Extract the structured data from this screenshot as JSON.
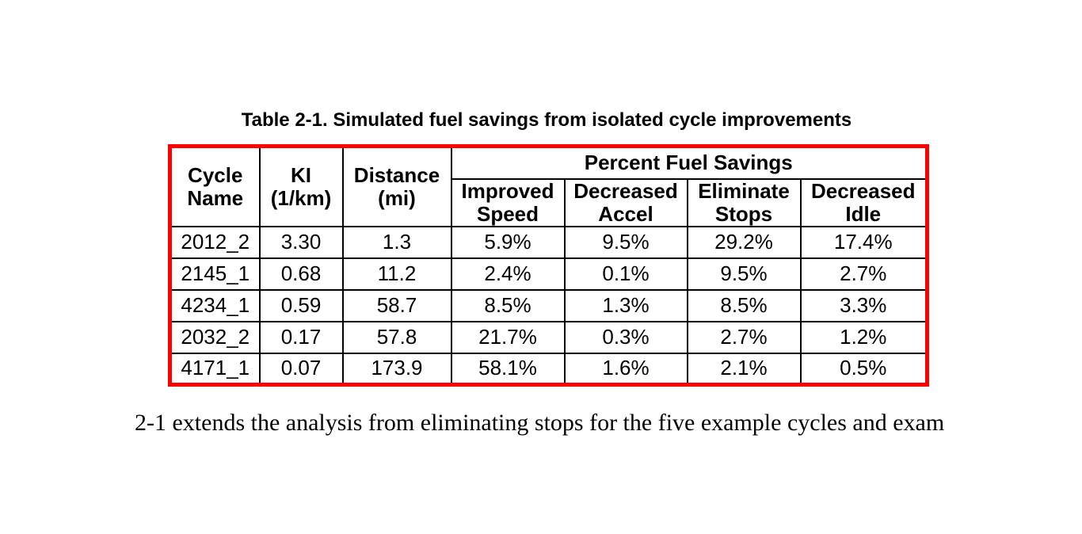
{
  "colors": {
    "table_border": "#fe0000",
    "grid_lines": "#000000",
    "text": "#000000",
    "background": "#ffffff"
  },
  "caption": "Table 2-1. Simulated fuel savings from isolated cycle improvements",
  "table": {
    "columns": {
      "cycle_name": "Cycle Name",
      "ki": "KI (1/km)",
      "distance": "Distance (mi)"
    },
    "group_header": "Percent Fuel Savings",
    "sub_headers": [
      "Improved Speed",
      "Decreased Accel",
      "Eliminate Stops",
      "Decreased Idle"
    ],
    "rows": [
      [
        "2012_2",
        "3.30",
        "1.3",
        "5.9%",
        "9.5%",
        "29.2%",
        "17.4%"
      ],
      [
        "2145_1",
        "0.68",
        "11.2",
        "2.4%",
        "0.1%",
        "9.5%",
        "2.7%"
      ],
      [
        "4234_1",
        "0.59",
        "58.7",
        "8.5%",
        "1.3%",
        "8.5%",
        "3.3%"
      ],
      [
        "2032_2",
        "0.17",
        "57.8",
        "21.7%",
        "0.3%",
        "2.7%",
        "1.2%"
      ],
      [
        "4171_1",
        "0.07",
        "173.9",
        "58.1%",
        "1.6%",
        "2.1%",
        "0.5%"
      ]
    ]
  },
  "body_text": "2-1 extends the analysis from eliminating stops for the five example cycles and exam"
}
